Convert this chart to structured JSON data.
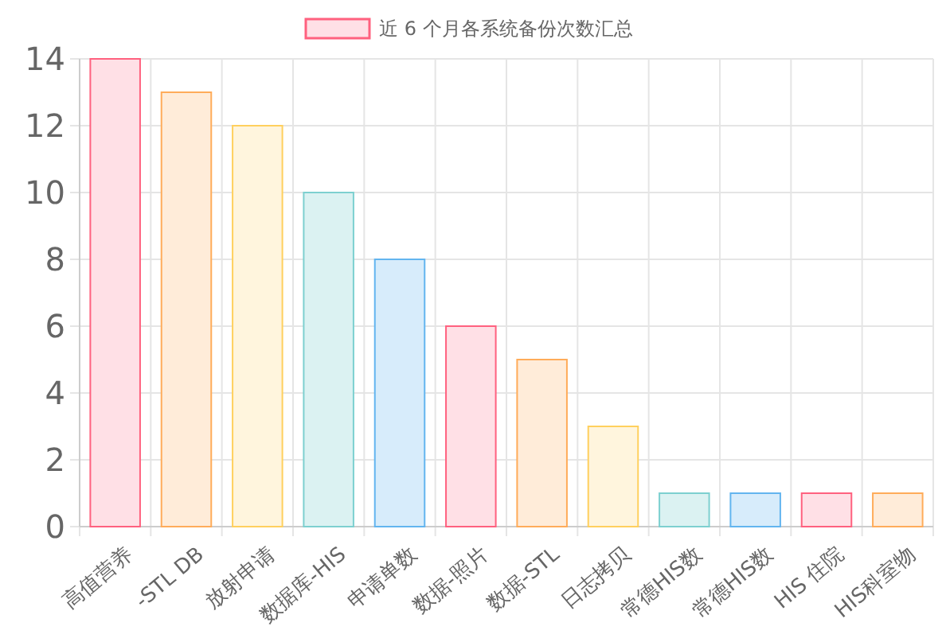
{
  "chart_data": {
    "type": "bar",
    "categories": [
      "高值营养",
      "-STL DB",
      "放射申请",
      "数据库-HIS",
      "申请单数",
      "数据-照片",
      "数据-STL",
      "日志拷贝",
      "常德HIS数",
      "常德HIS数",
      "HIS 住院",
      "HIS科室物"
    ],
    "series": [
      {
        "name": "近 6 个月各系统备份次数汇总",
        "color": "#ffe0e6",
        "colors": [
          "#ffe0e6",
          "#ffecd9",
          "#fff5dd",
          "#dbf2f2",
          "#d7ecfb",
          "#ffe0e6",
          "#ffecd9",
          "#fff5dd",
          "#dbf2f2",
          "#d7ecfb",
          "#ffe0e6",
          "#ffecd9"
        ],
        "values": [
          14,
          13,
          12,
          10,
          8,
          6,
          5,
          3,
          1,
          1,
          1,
          1
        ]
      }
    ],
    "ylim": [
      0,
      14
    ],
    "yticks": [
      0,
      2,
      4,
      6,
      8,
      10,
      12,
      14
    ],
    "grid": true,
    "legend": "top"
  }
}
